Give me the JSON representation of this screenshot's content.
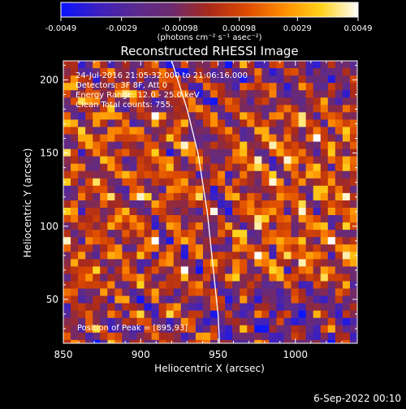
{
  "chart_data": {
    "type": "heatmap",
    "title": "Reconstructed RHESSI Image",
    "xlabel": "Heliocentric X (arcsec)",
    "ylabel": "Heliocentric Y (arcsec)",
    "xlim": [
      850,
      1040
    ],
    "ylim": [
      20,
      213
    ],
    "x_ticks": [
      850,
      900,
      950,
      1000
    ],
    "y_ticks": [
      50,
      100,
      150,
      200
    ],
    "colorbar": {
      "range": [
        -0.0049,
        0.0049
      ],
      "tick_labels": [
        "-0.0049",
        "-0.0029",
        "-0.00098",
        "0.00098",
        "0.0029",
        "0.0049"
      ],
      "tick_values": [
        -0.0049,
        -0.0029,
        -0.00098,
        0.00098,
        0.0029,
        0.0049
      ],
      "unit_label": "(photons cm⁻² s⁻¹ asec⁻²)",
      "colors": [
        "#0a14ff",
        "#3c1fbf",
        "#5a2a8f",
        "#6e2a6e",
        "#aa2a1a",
        "#dd4a00",
        "#ff8c00",
        "#ffd21a",
        "#ffffff"
      ]
    },
    "annotations": [
      "24-Jul-2016 21:05:32.000 to 21:06:16.000",
      "Detectors: 3F 8F, Att 0",
      "Energy Range: 12.0 - 25.0 keV",
      "Clean     Total counts: 755."
    ],
    "peak_label": "Position of Peak = [895,93]",
    "peak": {
      "x": 895,
      "y": 93
    },
    "limb_curve": [
      [
        920,
        213
      ],
      [
        930,
        180
      ],
      [
        937,
        150
      ],
      [
        943,
        110
      ],
      [
        947,
        70
      ],
      [
        950,
        40
      ],
      [
        951,
        20
      ]
    ]
  },
  "footer_date": "6-Sep-2022 00:10"
}
